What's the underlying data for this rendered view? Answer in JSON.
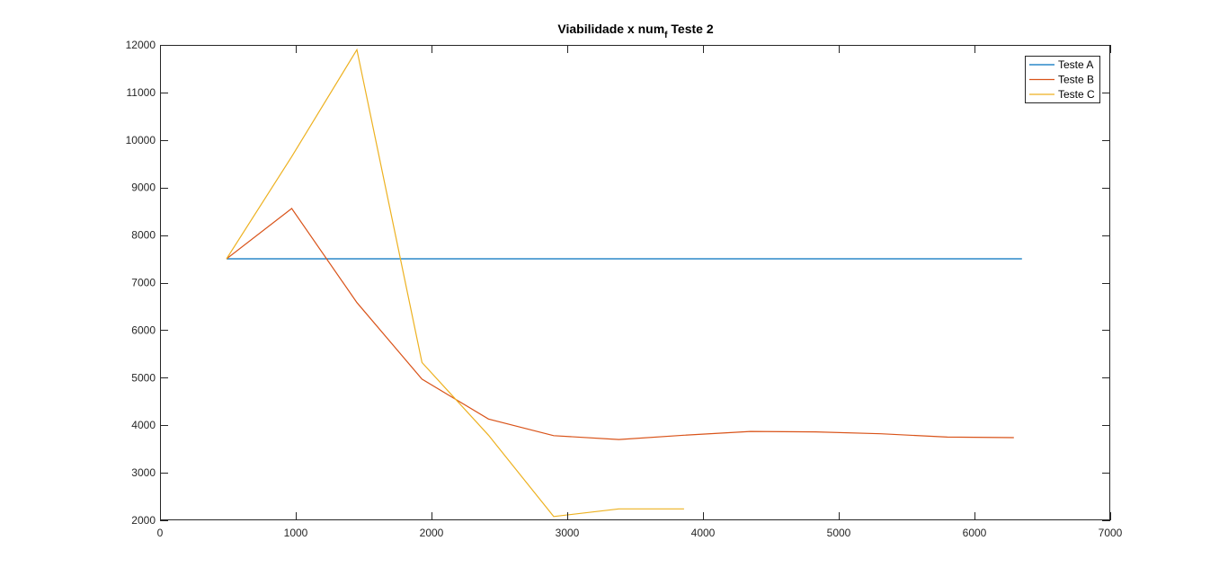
{
  "chart_data": {
    "type": "line",
    "title": "Viabilidade x num",
    "title_subscript": "f",
    "title_suffix": " Teste 2",
    "xlabel": "",
    "ylabel": "",
    "xlim": [
      0,
      7000
    ],
    "ylim": [
      2000,
      12000
    ],
    "xticks": [
      0,
      1000,
      2000,
      3000,
      4000,
      5000,
      6000,
      7000
    ],
    "yticks": [
      2000,
      3000,
      4000,
      5000,
      6000,
      7000,
      8000,
      9000,
      10000,
      11000,
      12000
    ],
    "grid": false,
    "legend_position": "top-right",
    "series": [
      {
        "name": "Teste A",
        "color": "#0072BD",
        "x": [
          490,
          6350
        ],
        "y": [
          7500,
          7500
        ]
      },
      {
        "name": "Teste B",
        "color": "#D95319",
        "x": [
          490,
          970,
          1450,
          1930,
          2420,
          2900,
          3380,
          3860,
          4350,
          4830,
          5310,
          5800,
          6290
        ],
        "y": [
          7500,
          8560,
          6580,
          4970,
          4130,
          3780,
          3700,
          3790,
          3870,
          3860,
          3820,
          3750,
          3740
        ]
      },
      {
        "name": "Teste C",
        "color": "#EDB120",
        "x": [
          490,
          970,
          1450,
          1930,
          2420,
          2900,
          3380,
          3860
        ],
        "y": [
          7500,
          9650,
          11900,
          5320,
          3790,
          2080,
          2240,
          2240
        ]
      }
    ]
  }
}
